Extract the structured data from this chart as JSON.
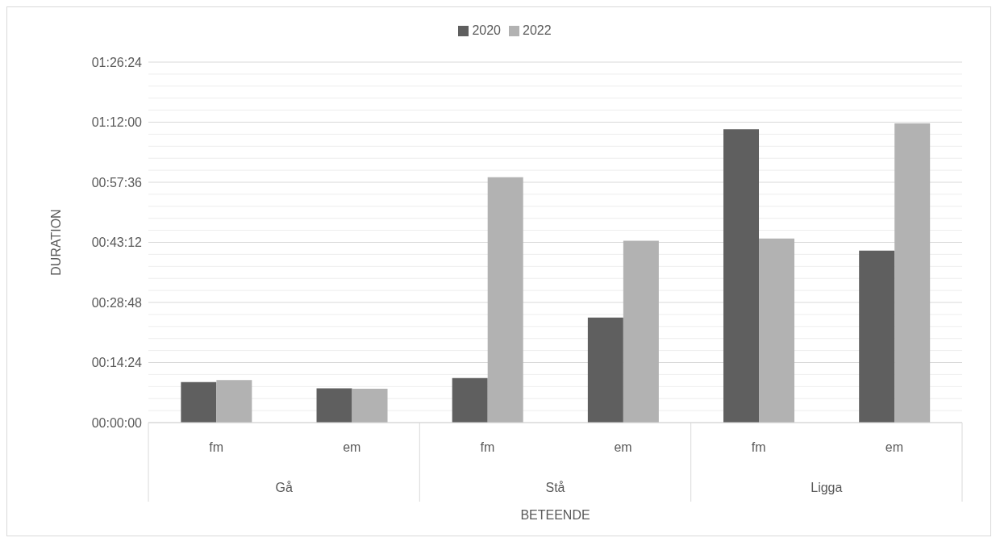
{
  "chart_data": {
    "type": "bar",
    "categories": [
      "fm",
      "em",
      "fm",
      "em",
      "fm",
      "em"
    ],
    "series": [
      {
        "name": "2020",
        "color": "#5f5f5f",
        "values": [
          9.7,
          8.2,
          10.7,
          25.2,
          70.3,
          41.2
        ]
      },
      {
        "name": "2022",
        "color": "#b2b2b2",
        "values": [
          10.2,
          8.1,
          58.8,
          43.6,
          44.1,
          71.7
        ]
      }
    ],
    "xlabel": "BETEENDE",
    "ylabel": "DURATION",
    "annotations": [
      "Gå",
      "Stå",
      "Ligga"
    ],
    "ylim": [
      0,
      86.4
    ],
    "yticks": [
      {
        "value": 0,
        "label": "00:00:00"
      },
      {
        "value": 2.88,
        "label": null
      },
      {
        "value": 5.76,
        "label": null
      },
      {
        "value": 8.64,
        "label": null
      },
      {
        "value": 11.52,
        "label": null
      },
      {
        "value": 14.4,
        "label": "00:14:24"
      },
      {
        "value": 17.28,
        "label": null
      },
      {
        "value": 20.16,
        "label": null
      },
      {
        "value": 23.04,
        "label": null
      },
      {
        "value": 25.92,
        "label": null
      },
      {
        "value": 28.8,
        "label": "00:28:48"
      },
      {
        "value": 31.68,
        "label": null
      },
      {
        "value": 34.56,
        "label": null
      },
      {
        "value": 37.44,
        "label": null
      },
      {
        "value": 40.32,
        "label": null
      },
      {
        "value": 43.2,
        "label": "00:43:12"
      },
      {
        "value": 46.08,
        "label": null
      },
      {
        "value": 48.96,
        "label": null
      },
      {
        "value": 51.84,
        "label": null
      },
      {
        "value": 54.72,
        "label": null
      },
      {
        "value": 57.6,
        "label": "00:57:36"
      },
      {
        "value": 60.48,
        "label": null
      },
      {
        "value": 63.36,
        "label": null
      },
      {
        "value": 66.24,
        "label": null
      },
      {
        "value": 69.12,
        "label": null
      },
      {
        "value": 72,
        "label": "01:12:00"
      },
      {
        "value": 74.88,
        "label": null
      },
      {
        "value": 77.76,
        "label": null
      },
      {
        "value": 80.64,
        "label": null
      },
      {
        "value": 83.52,
        "label": null
      },
      {
        "value": 86.4,
        "label": "01:26:24"
      }
    ],
    "grid": "y",
    "legend": "top"
  }
}
